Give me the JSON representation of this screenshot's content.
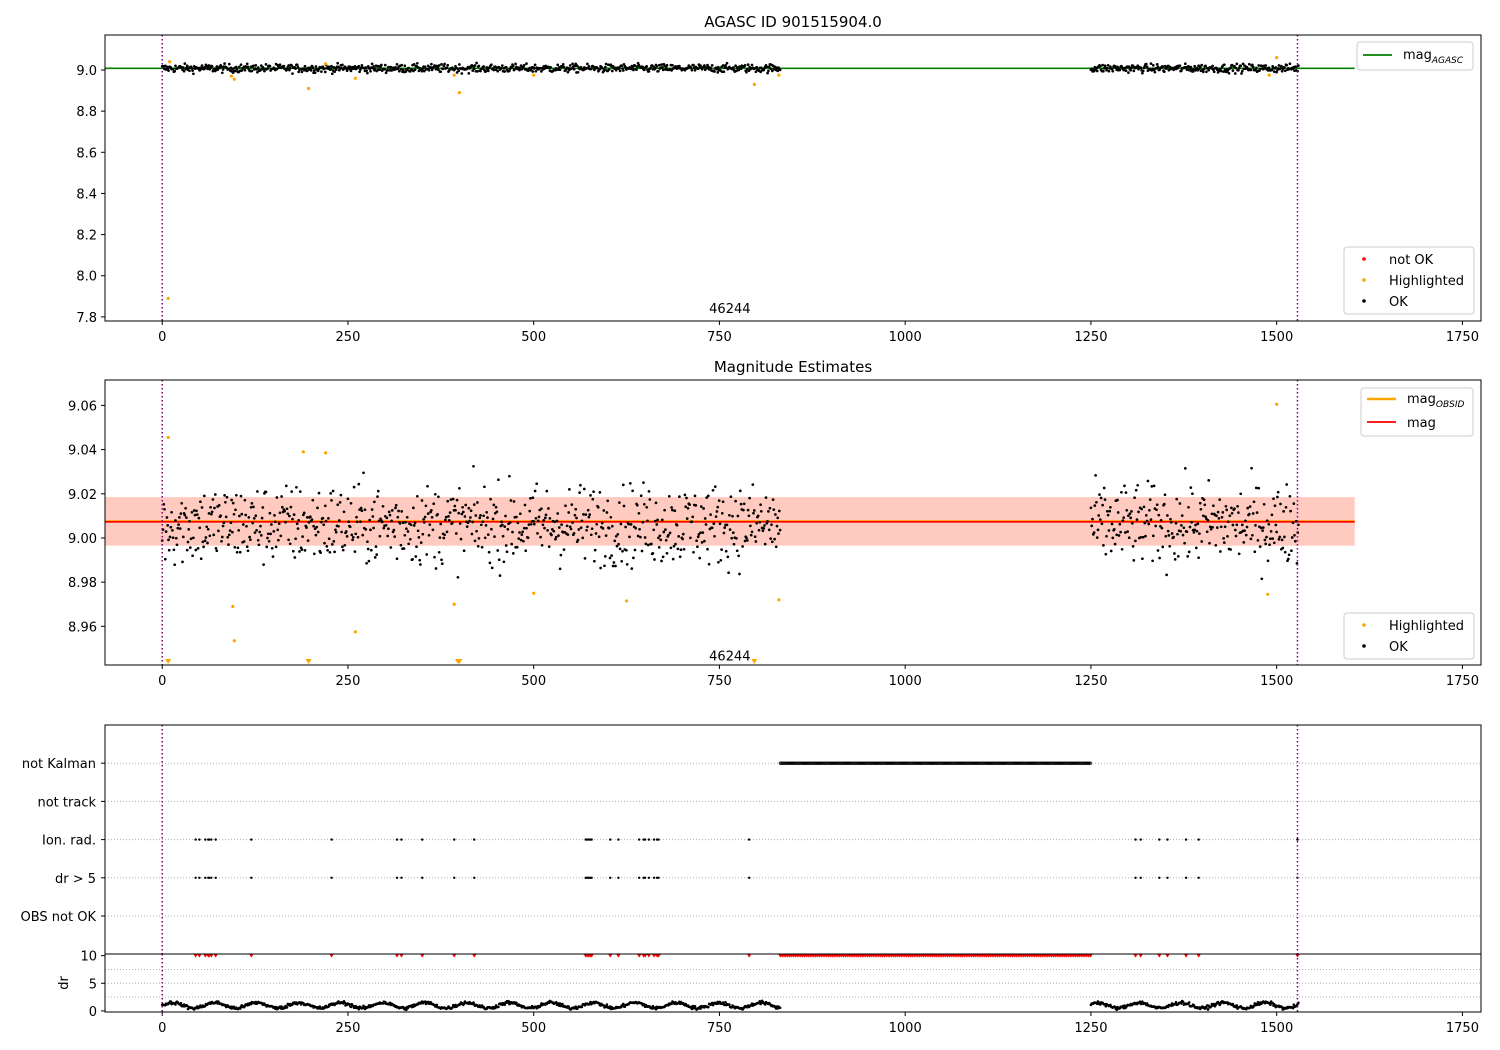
{
  "x_axis": {
    "xlim": [
      -77,
      1775
    ],
    "ticks": [
      0,
      250,
      500,
      750,
      1000,
      1250,
      1500,
      1750
    ],
    "tick_labels": [
      "0",
      "250",
      "500",
      "750",
      "1000",
      "1250",
      "1500",
      "1750"
    ]
  },
  "obsid_lines": [
    0,
    1528
  ],
  "chart_data": [
    {
      "type": "scatter",
      "panel": "agasc",
      "title": "AGASC ID 901515904.0",
      "ylim": [
        7.78,
        9.17
      ],
      "yticks": [
        7.8,
        8.0,
        8.2,
        8.4,
        8.6,
        8.8,
        9.0
      ],
      "ytick_labels": [
        "7.8",
        "8.0",
        "8.2",
        "8.4",
        "8.6",
        "8.8",
        "9.0"
      ],
      "annotation": {
        "text": "46244",
        "x": 764,
        "y": 7.82
      },
      "mag_agasc": {
        "value": 9.008,
        "x": [
          -77,
          1605
        ]
      },
      "legend_lines": [
        {
          "name": "mag",
          "subscript": "AGASC",
          "color": "#008000"
        }
      ],
      "legend_markers": [
        {
          "name": "not OK",
          "color": "#ff0000"
        },
        {
          "name": "Highlighted",
          "color": "#ffa500"
        },
        {
          "name": "OK",
          "color": "#000000"
        }
      ],
      "series": [
        {
          "name": "OK",
          "color": "#000000",
          "segments": [
            [
              0,
              832
            ],
            [
              1250,
              1530
            ]
          ],
          "center": 9.008,
          "spread": 0.01
        },
        {
          "name": "Highlighted",
          "color": "#ffa500",
          "points": [
            [
              8,
              7.89
            ],
            [
              10,
              9.04
            ],
            [
              93,
              8.97
            ],
            [
              97,
              8.955
            ],
            [
              197,
              8.91
            ],
            [
              220,
              9.03
            ],
            [
              260,
              8.96
            ],
            [
              393,
              8.975
            ],
            [
              400,
              8.89
            ],
            [
              500,
              8.975
            ],
            [
              797,
              8.93
            ],
            [
              830,
              8.975
            ],
            [
              1490,
              8.975
            ],
            [
              1500,
              9.06
            ]
          ]
        }
      ]
    },
    {
      "type": "scatter",
      "panel": "estimates",
      "title": "Magnitude Estimates",
      "ylim": [
        8.9425,
        9.0715
      ],
      "yticks": [
        8.96,
        8.98,
        9.0,
        9.02,
        9.04,
        9.06
      ],
      "ytick_labels": [
        "8.96",
        "8.98",
        "9.00",
        "9.02",
        "9.04",
        "9.06"
      ],
      "annotation": {
        "text": "46244",
        "x": 764,
        "y": 8.9445
      },
      "mag": {
        "value": 9.0073,
        "band": [
          8.9965,
          9.0185
        ],
        "color": "#ff0000"
      },
      "mag_obsid": {
        "value": 9.0075,
        "band": [
          8.9965,
          9.0185
        ],
        "color": "#ffa500",
        "x": [
          0,
          832
        ]
      },
      "legend_lines": [
        {
          "name": "mag",
          "subscript": "OBSID",
          "color": "#ffa500"
        },
        {
          "name": "mag",
          "subscript": "",
          "color": "#ff0000"
        }
      ],
      "legend_markers": [
        {
          "name": "Highlighted",
          "color": "#ffa500"
        },
        {
          "name": "OK",
          "color": "#000000"
        }
      ],
      "series": [
        {
          "name": "OK",
          "color": "#000000",
          "segments": [
            [
              0,
              832
            ],
            [
              1250,
              1530
            ]
          ],
          "center": 9.006,
          "spread": 0.009
        },
        {
          "name": "Highlighted",
          "color": "#ffa500",
          "points": [
            [
              8,
              9.0455
            ],
            [
              95,
              8.969
            ],
            [
              97,
              8.9535
            ],
            [
              190,
              9.039
            ],
            [
              220,
              9.0385
            ],
            [
              260,
              8.9575
            ],
            [
              393,
              8.97
            ],
            [
              500,
              8.975
            ],
            [
              625,
              8.9715
            ],
            [
              830,
              8.972
            ],
            [
              1488,
              8.9745
            ],
            [
              1500,
              9.0605
            ]
          ]
        },
        {
          "name": "Highlighted (below axis)",
          "color": "#ffa500",
          "points": [
            [
              8,
              8.943
            ],
            [
              197,
              8.943
            ],
            [
              398,
              8.943
            ],
            [
              400,
              8.943
            ],
            [
              797,
              8.943
            ]
          ]
        }
      ]
    },
    {
      "type": "scatter",
      "panel": "flags",
      "categories": [
        "OBS not OK",
        "dr > 5",
        "Ion. rad.",
        "not track",
        "not Kalman"
      ],
      "not_kalman_range": [
        832,
        1250
      ],
      "flag_x": [
        45,
        50,
        58,
        62,
        63,
        66,
        72,
        120,
        228,
        316,
        322,
        350,
        393,
        420,
        570,
        572,
        574,
        576,
        578,
        603,
        614,
        642,
        648,
        650,
        655,
        662,
        666,
        668,
        790,
        1310,
        1317,
        1342,
        1353,
        1378,
        1395,
        1528
      ]
    },
    {
      "type": "scatter",
      "panel": "dr",
      "ylabel": "dr",
      "ylim": [
        -0.2,
        10.3
      ],
      "yticks": [
        0,
        5,
        10
      ],
      "ytick_labels": [
        "0",
        "5",
        "10"
      ],
      "clipped_value": 10,
      "series": [
        {
          "name": "dr",
          "color": "#000000",
          "segments": [
            [
              0,
              832
            ],
            [
              1250,
              1530
            ]
          ],
          "center": 1.0,
          "spread": 0.5
        }
      ]
    }
  ]
}
